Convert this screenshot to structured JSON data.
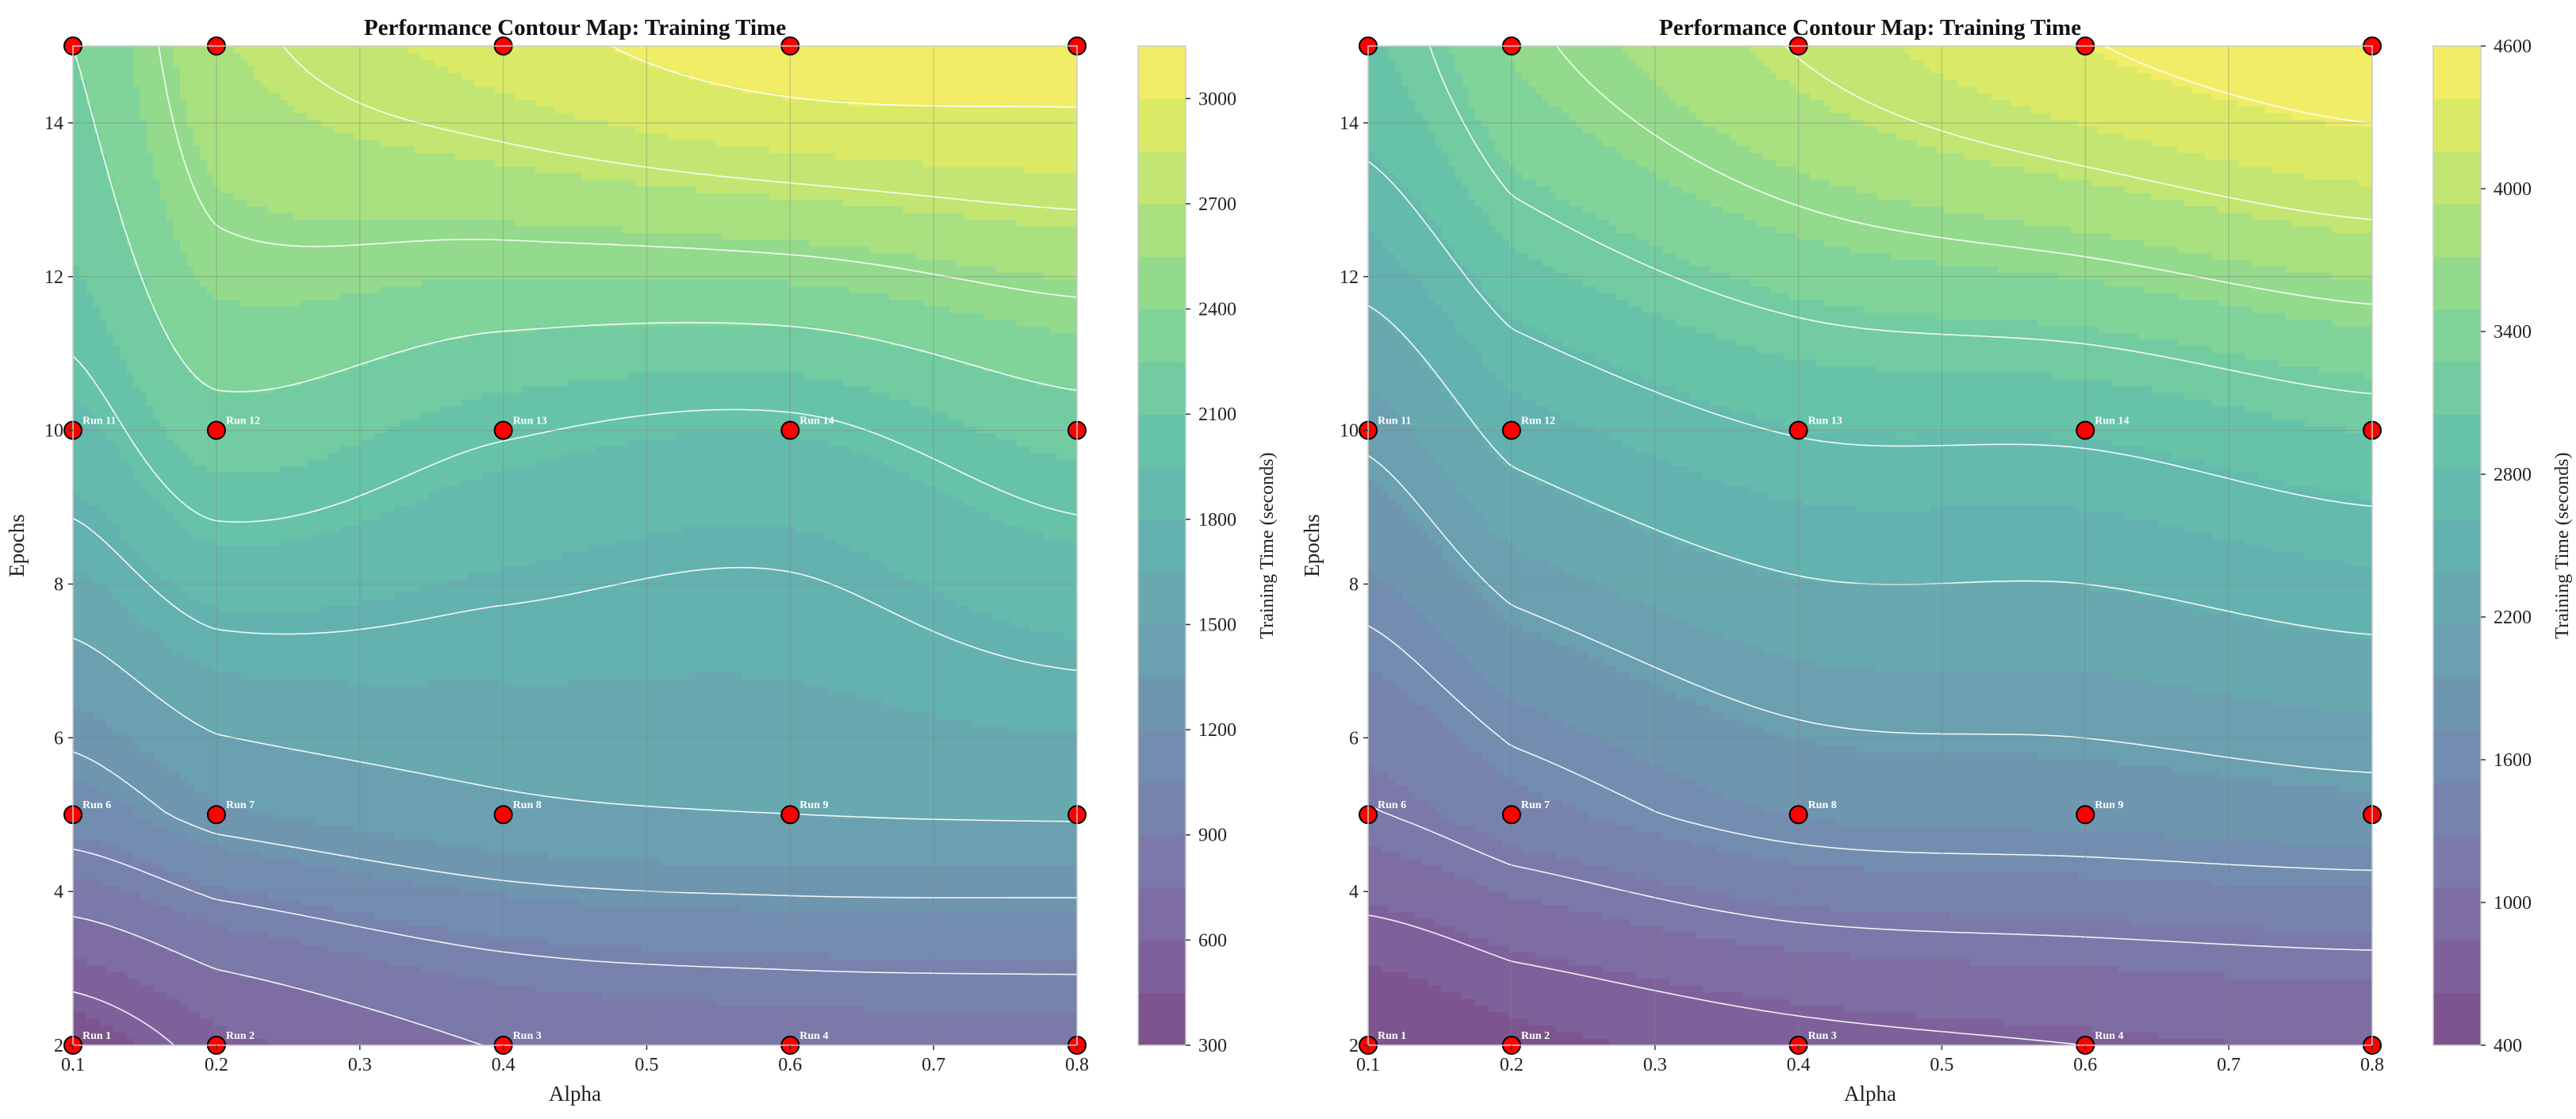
{
  "chart_data": [
    {
      "type": "contour",
      "title": "Performance Contour Map: Training Time",
      "xlabel": "Alpha",
      "ylabel": "Epochs",
      "colorbar_label": "Training Time (seconds)",
      "xlim": [
        0.1,
        0.8
      ],
      "ylim": [
        2,
        15
      ],
      "xticks": [
        "0.1",
        "0.2",
        "0.3",
        "0.4",
        "0.5",
        "0.6",
        "0.7",
        "0.8"
      ],
      "yticks": [
        "2",
        "4",
        "6",
        "8",
        "10",
        "12",
        "14"
      ],
      "colorbar_range": [
        300,
        3150
      ],
      "colorbar_ticks": [
        "300",
        "600",
        "900",
        "1200",
        "1500",
        "1800",
        "2100",
        "2400",
        "2700",
        "3000"
      ],
      "grid": true,
      "colormap": "viridis",
      "alphas": [
        0.1,
        0.2,
        0.4,
        0.6,
        0.8
      ],
      "epochs": [
        2,
        5,
        10,
        15
      ],
      "values": [
        [
          380,
          560,
          760,
          820,
          840
        ],
        [
          1120,
          1320,
          1460,
          1500,
          1520
        ],
        [
          1900,
          2180,
          2020,
          1960,
          2160
        ],
        [
          2250,
          2680,
          2920,
          3100,
          3100
        ]
      ],
      "contour_levels": [
        250,
        500,
        750,
        1000,
        1250,
        1500,
        1750,
        2000,
        2250,
        2500,
        2750,
        3000
      ],
      "points": [
        {
          "label": "Run 1",
          "alpha": 0.1,
          "epochs": 2
        },
        {
          "label": "Run 2",
          "alpha": 0.2,
          "epochs": 2
        },
        {
          "label": "Run 3",
          "alpha": 0.4,
          "epochs": 2
        },
        {
          "label": "Run 4",
          "alpha": 0.6,
          "epochs": 2
        },
        {
          "label": "",
          "alpha": 0.8,
          "epochs": 2
        },
        {
          "label": "Run 6",
          "alpha": 0.1,
          "epochs": 5
        },
        {
          "label": "Run 7",
          "alpha": 0.2,
          "epochs": 5
        },
        {
          "label": "Run 8",
          "alpha": 0.4,
          "epochs": 5
        },
        {
          "label": "Run 9",
          "alpha": 0.6,
          "epochs": 5
        },
        {
          "label": "",
          "alpha": 0.8,
          "epochs": 5
        },
        {
          "label": "Run 11",
          "alpha": 0.1,
          "epochs": 10
        },
        {
          "label": "Run 12",
          "alpha": 0.2,
          "epochs": 10
        },
        {
          "label": "Run 13",
          "alpha": 0.4,
          "epochs": 10
        },
        {
          "label": "Run 14",
          "alpha": 0.6,
          "epochs": 10
        },
        {
          "label": "",
          "alpha": 0.8,
          "epochs": 10
        },
        {
          "label": "",
          "alpha": 0.1,
          "epochs": 15
        },
        {
          "label": "",
          "alpha": 0.2,
          "epochs": 15
        },
        {
          "label": "",
          "alpha": 0.4,
          "epochs": 15
        },
        {
          "label": "",
          "alpha": 0.6,
          "epochs": 15
        },
        {
          "label": "",
          "alpha": 0.8,
          "epochs": 15
        }
      ]
    },
    {
      "type": "contour",
      "title": "Performance Contour Map: Training Time",
      "xlabel": "Alpha",
      "ylabel": "Epochs",
      "colorbar_label": "Training Time (seconds)",
      "xlim": [
        0.1,
        0.8
      ],
      "ylim": [
        2,
        15
      ],
      "xticks": [
        "0.1",
        "0.2",
        "0.3",
        "0.4",
        "0.5",
        "0.6",
        "0.7",
        "0.8"
      ],
      "yticks": [
        "2",
        "4",
        "6",
        "8",
        "10",
        "12",
        "14"
      ],
      "colorbar_range": [
        400,
        4600
      ],
      "colorbar_ticks": [
        "400",
        "1000",
        "1600",
        "2200",
        "2800",
        "3400",
        "4000",
        "4600"
      ],
      "grid": true,
      "colormap": "viridis",
      "alphas": [
        0.1,
        0.2,
        0.4,
        0.6,
        0.8
      ],
      "epochs": [
        2,
        5,
        10,
        15
      ],
      "values": [
        [
          420,
          560,
          720,
          800,
          860
        ],
        [
          1180,
          1420,
          1740,
          1800,
          1880
        ],
        [
          2060,
          2500,
          2820,
          2860,
          3060
        ],
        [
          3020,
          3520,
          4020,
          4380,
          4620
        ]
      ],
      "contour_levels": [
        400,
        800,
        1200,
        1600,
        2000,
        2400,
        2800,
        3200,
        3600,
        4000,
        4400
      ],
      "points": [
        {
          "label": "Run 1",
          "alpha": 0.1,
          "epochs": 2
        },
        {
          "label": "Run 2",
          "alpha": 0.2,
          "epochs": 2
        },
        {
          "label": "Run 3",
          "alpha": 0.4,
          "epochs": 2
        },
        {
          "label": "Run 4",
          "alpha": 0.6,
          "epochs": 2
        },
        {
          "label": "",
          "alpha": 0.8,
          "epochs": 2
        },
        {
          "label": "Run 6",
          "alpha": 0.1,
          "epochs": 5
        },
        {
          "label": "Run 7",
          "alpha": 0.2,
          "epochs": 5
        },
        {
          "label": "Run 8",
          "alpha": 0.4,
          "epochs": 5
        },
        {
          "label": "Run 9",
          "alpha": 0.6,
          "epochs": 5
        },
        {
          "label": "",
          "alpha": 0.8,
          "epochs": 5
        },
        {
          "label": "Run 11",
          "alpha": 0.1,
          "epochs": 10
        },
        {
          "label": "Run 12",
          "alpha": 0.2,
          "epochs": 10
        },
        {
          "label": "Run 13",
          "alpha": 0.4,
          "epochs": 10
        },
        {
          "label": "Run 14",
          "alpha": 0.6,
          "epochs": 10
        },
        {
          "label": "",
          "alpha": 0.8,
          "epochs": 10
        },
        {
          "label": "",
          "alpha": 0.1,
          "epochs": 15
        },
        {
          "label": "",
          "alpha": 0.2,
          "epochs": 15
        },
        {
          "label": "",
          "alpha": 0.4,
          "epochs": 15
        },
        {
          "label": "",
          "alpha": 0.6,
          "epochs": 15
        },
        {
          "label": "",
          "alpha": 0.8,
          "epochs": 15
        }
      ]
    }
  ]
}
